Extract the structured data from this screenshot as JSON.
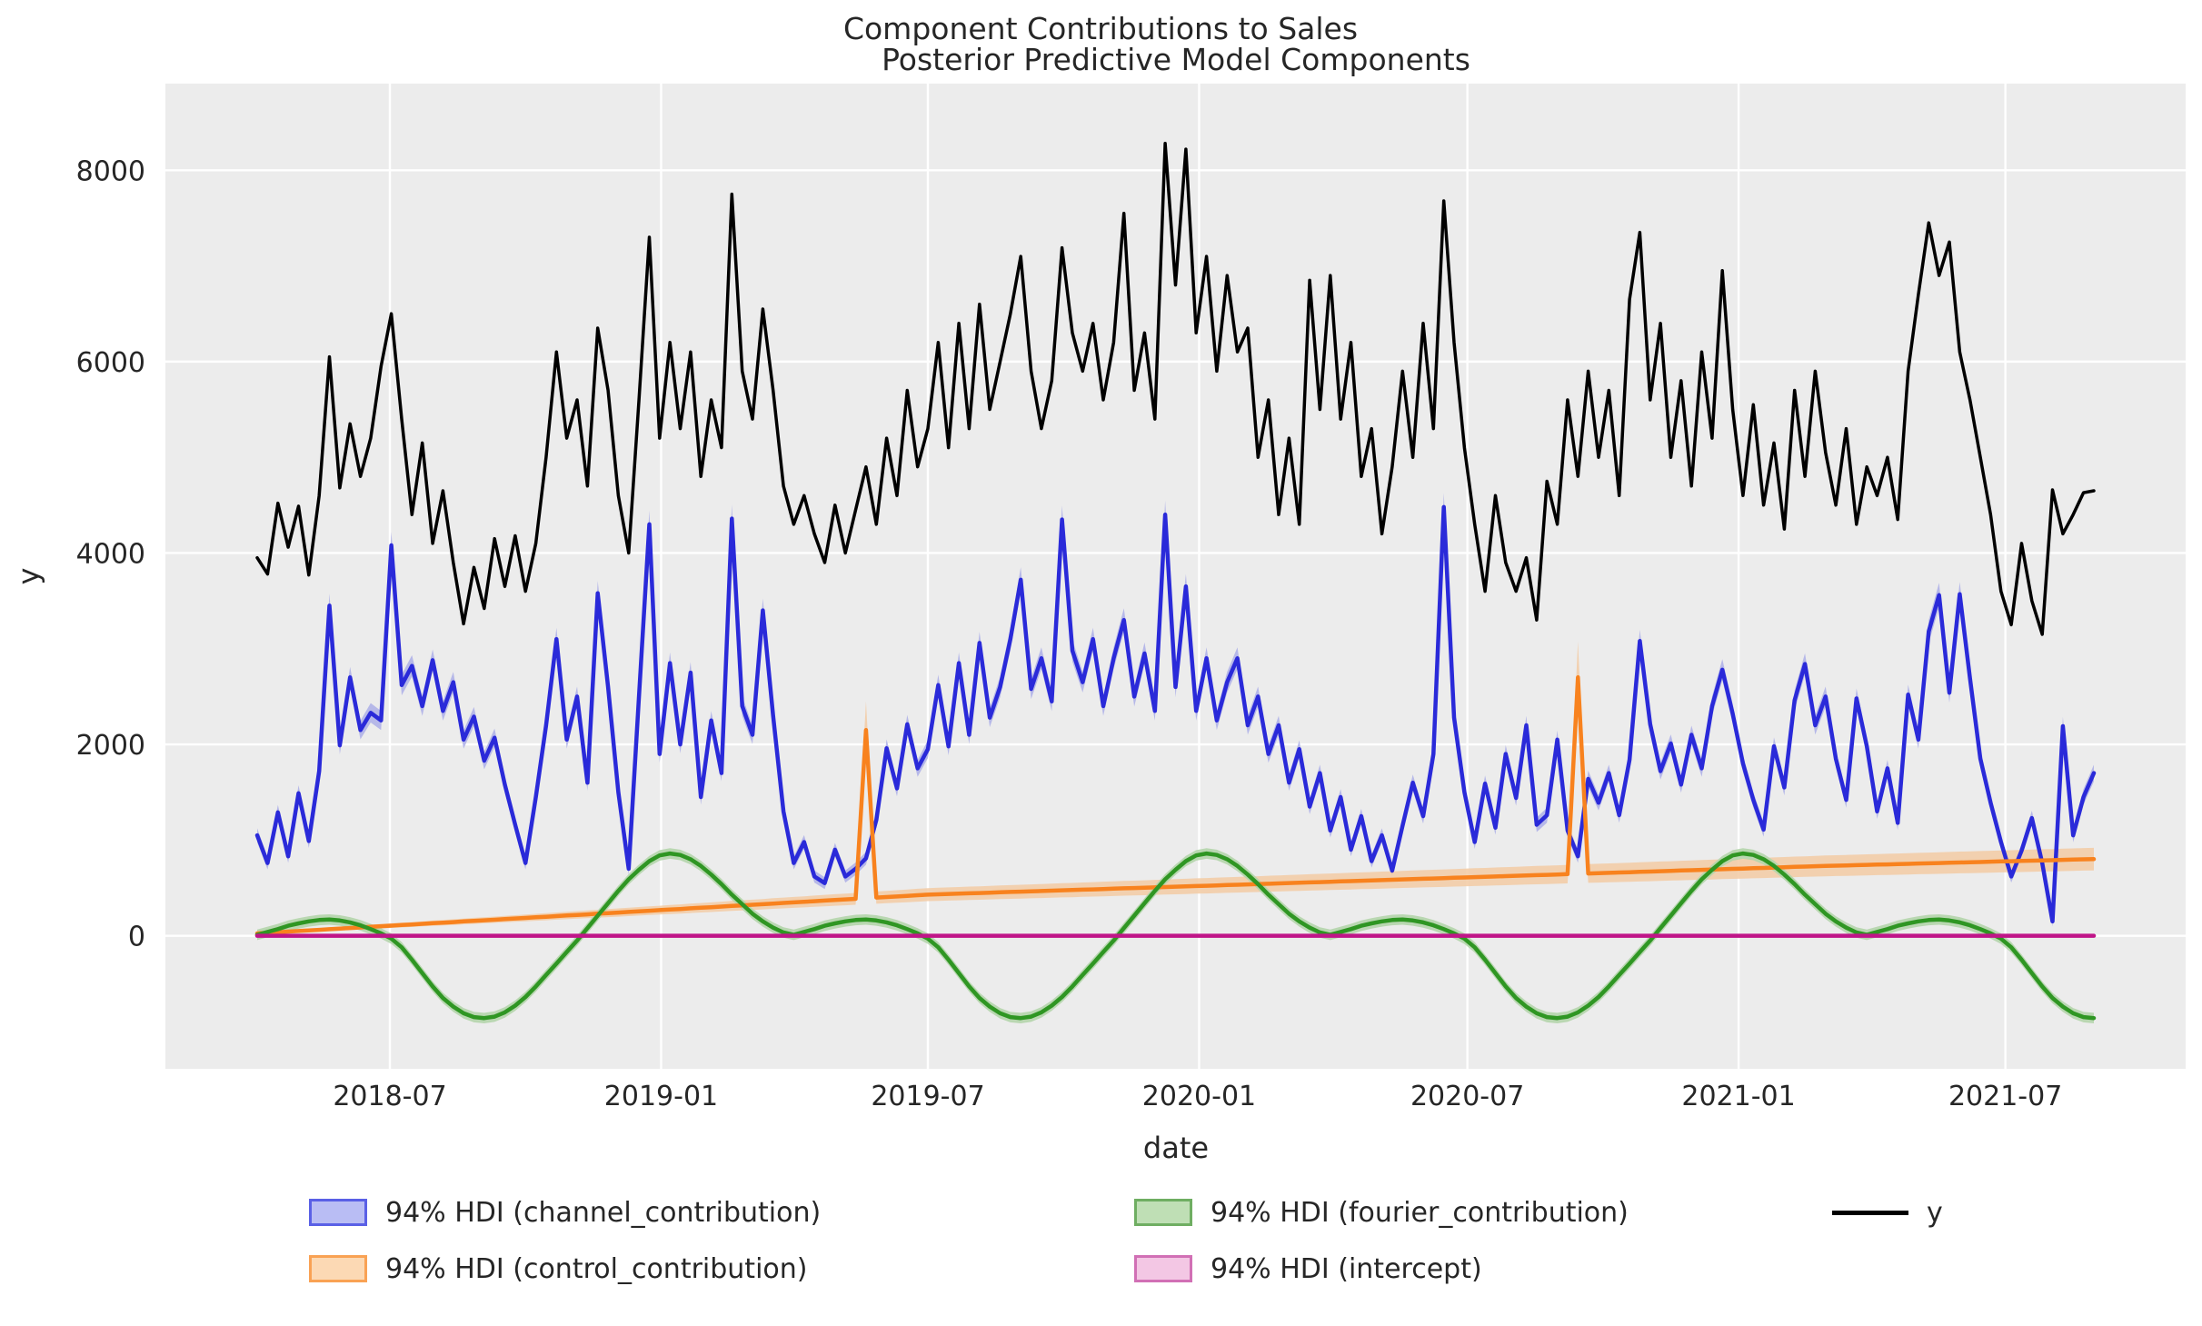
{
  "figure": {
    "suptitle": "Component Contributions to Sales",
    "title": "Posterior Predictive Model Components",
    "xlabel": "date",
    "ylabel": "y",
    "background": "#ffffff",
    "plot_background": "#ececec",
    "gridline_color": "#ffffff",
    "text_color": "#262626"
  },
  "axes": {
    "xlim_weeks": [
      -8.9,
      186.9
    ],
    "ylim": [
      -1390,
      8905
    ],
    "x_ticks": [
      {
        "label": "2018-07",
        "week": 12.857
      },
      {
        "label": "2019-01",
        "week": 39.143
      },
      {
        "label": "2019-07",
        "week": 65.0
      },
      {
        "label": "2020-01",
        "week": 91.286
      },
      {
        "label": "2020-07",
        "week": 117.286
      },
      {
        "label": "2021-01",
        "week": 143.571
      },
      {
        "label": "2021-07",
        "week": 169.429
      }
    ],
    "y_ticks": [
      {
        "label": "0",
        "value": 0
      },
      {
        "label": "2000",
        "value": 2000
      },
      {
        "label": "4000",
        "value": 4000
      },
      {
        "label": "6000",
        "value": 6000
      },
      {
        "label": "8000",
        "value": 8000
      }
    ]
  },
  "legend": {
    "items": [
      {
        "label": "94% HDI (channel_contribution)",
        "type": "patch",
        "fill": "#b9bdf4",
        "edge": "#5a60e6"
      },
      {
        "label": "94% HDI (control_contribution)",
        "type": "patch",
        "fill": "#fcd9b4",
        "edge": "#f9a254"
      },
      {
        "label": "94% HDI (fourier_contribution)",
        "type": "patch",
        "fill": "#bfdfb5",
        "edge": "#6fae62"
      },
      {
        "label": "94% HDI (intercept)",
        "type": "patch",
        "fill": "#f3c7e4",
        "edge": "#d170b5"
      },
      {
        "label": "y",
        "type": "line",
        "color": "#000000"
      }
    ]
  },
  "chart_data": {
    "type": "line",
    "title": "Component Contributions to Sales — Posterior Predictive Model Components",
    "xlabel": "date",
    "ylabel": "y",
    "x_unit": "week",
    "start_date": "2018-04-02",
    "end_date": "2021-08-30",
    "freq": "weekly (Mondays)",
    "n_points": 179,
    "grid": true,
    "legend_position": "bottom",
    "series": [
      {
        "name": "channel_contribution",
        "color": "#2a2ad9",
        "line_width": 4.5,
        "hdi_band": {
          "base": 50,
          "rel": 0.022,
          "color": "#b0b2e8",
          "label": "94% HDI"
        },
        "values": [
          1050,
          760,
          1290,
          830,
          1490,
          990,
          1720,
          3450,
          1990,
          2700,
          2150,
          2330,
          2250,
          4080,
          2620,
          2820,
          2400,
          2880,
          2350,
          2650,
          2050,
          2290,
          1830,
          2070,
          1580,
          1160,
          760,
          1450,
          2200,
          3100,
          2050,
          2500,
          1600,
          3580,
          2600,
          1500,
          700,
          2500,
          4300,
          1900,
          2850,
          2000,
          2750,
          1450,
          2250,
          1700,
          4360,
          2400,
          2100,
          3400,
          2300,
          1300,
          760,
          980,
          620,
          550,
          900,
          620,
          700,
          810,
          1210,
          1960,
          1540,
          2210,
          1750,
          1950,
          2620,
          1980,
          2850,
          2100,
          3060,
          2280,
          2600,
          3100,
          3720,
          2580,
          2900,
          2450,
          4350,
          2980,
          2650,
          3100,
          2400,
          2900,
          3300,
          2500,
          2950,
          2350,
          4400,
          2600,
          3650,
          2350,
          2900,
          2250,
          2650,
          2900,
          2200,
          2500,
          1900,
          2200,
          1600,
          1950,
          1350,
          1700,
          1100,
          1450,
          900,
          1250,
          780,
          1050,
          680,
          1150,
          1600,
          1250,
          1900,
          4480,
          2280,
          1500,
          980,
          1590,
          1130,
          1900,
          1440,
          2200,
          1160,
          1260,
          2050,
          1100,
          830,
          1640,
          1390,
          1700,
          1260,
          1840,
          3080,
          2210,
          1720,
          2010,
          1580,
          2100,
          1750,
          2400,
          2780,
          2320,
          1800,
          1420,
          1110,
          1980,
          1550,
          2460,
          2840,
          2200,
          2500,
          1850,
          1420,
          2480,
          1980,
          1300,
          1750,
          1180,
          2520,
          2050,
          3180,
          3560,
          2540,
          3570,
          2690,
          1850,
          1390,
          980,
          620,
          890,
          1230,
          760,
          150,
          2190,
          1050,
          1450,
          1700
        ]
      },
      {
        "name": "control_contribution",
        "color": "#f8821e",
        "line_width": 4.5,
        "hdi_band": {
          "base": 10,
          "rel": 0.135,
          "color": "#f3cda9",
          "label": "94% HDI"
        },
        "values": [
          25,
          31,
          37,
          44,
          50,
          56,
          62,
          69,
          75,
          81,
          87,
          94,
          100,
          106,
          112,
          118,
          125,
          131,
          137,
          143,
          150,
          156,
          162,
          168,
          175,
          181,
          187,
          193,
          199,
          206,
          212,
          218,
          224,
          231,
          237,
          243,
          249,
          256,
          262,
          268,
          274,
          280,
          287,
          293,
          299,
          305,
          312,
          318,
          324,
          330,
          337,
          343,
          349,
          355,
          361,
          368,
          374,
          380,
          386,
          2150,
          399,
          405,
          411,
          417,
          424,
          430,
          433,
          437,
          440,
          444,
          447,
          451,
          454,
          458,
          461,
          464,
          468,
          471,
          475,
          478,
          482,
          485,
          489,
          492,
          496,
          499,
          502,
          506,
          509,
          513,
          516,
          520,
          523,
          527,
          530,
          533,
          537,
          540,
          544,
          547,
          551,
          554,
          558,
          561,
          565,
          568,
          571,
          575,
          578,
          582,
          585,
          589,
          592,
          596,
          599,
          602,
          606,
          609,
          613,
          616,
          620,
          623,
          627,
          630,
          634,
          637,
          640,
          644,
          2700,
          651,
          654,
          658,
          661,
          664,
          668,
          671,
          675,
          678,
          682,
          685,
          689,
          692,
          696,
          699,
          702,
          706,
          709,
          713,
          716,
          720,
          723,
          727,
          730,
          733,
          735,
          738,
          741,
          744,
          746,
          749,
          752,
          755,
          757,
          760,
          763,
          766,
          768,
          771,
          774,
          777,
          779,
          782,
          785,
          788,
          790,
          793,
          796,
          799,
          801
        ]
      },
      {
        "name": "fourier_contribution",
        "color": "#2f9623",
        "line_width": 4.5,
        "hdi_band": {
          "base": 55,
          "rel": 0,
          "color": "#b4d5ab",
          "label": "94% HDI"
        },
        "values": [
          10,
          40,
          70,
          105,
          130,
          150,
          165,
          170,
          160,
          140,
          110,
          70,
          25,
          -30,
          -120,
          -250,
          -390,
          -530,
          -650,
          -740,
          -810,
          -850,
          -860,
          -845,
          -800,
          -730,
          -640,
          -530,
          -410,
          -290,
          -170,
          -50,
          80,
          210,
          340,
          470,
          590,
          690,
          780,
          840,
          860,
          845,
          800,
          730,
          640,
          540,
          430,
          330,
          230,
          150,
          85,
          35,
          10,
          40,
          70,
          105,
          130,
          150,
          165,
          170,
          160,
          140,
          110,
          70,
          25,
          -30,
          -120,
          -250,
          -390,
          -530,
          -650,
          -740,
          -810,
          -850,
          -860,
          -845,
          -800,
          -730,
          -640,
          -530,
          -410,
          -290,
          -170,
          -50,
          80,
          210,
          340,
          470,
          590,
          690,
          780,
          840,
          860,
          845,
          800,
          730,
          640,
          540,
          430,
          330,
          230,
          150,
          85,
          35,
          10,
          40,
          70,
          105,
          130,
          150,
          165,
          170,
          160,
          140,
          110,
          70,
          25,
          -30,
          -120,
          -250,
          -390,
          -530,
          -650,
          -740,
          -810,
          -850,
          -860,
          -845,
          -800,
          -730,
          -640,
          -530,
          -410,
          -290,
          -170,
          -50,
          80,
          210,
          340,
          470,
          590,
          690,
          780,
          840,
          860,
          845,
          800,
          730,
          640,
          540,
          430,
          330,
          230,
          150,
          85,
          35,
          10,
          40,
          70,
          105,
          130,
          150,
          165,
          170,
          160,
          140,
          110,
          70,
          25,
          -30,
          -120,
          -250,
          -390,
          -530,
          -650,
          -740,
          -810,
          -850,
          -860
        ]
      },
      {
        "name": "intercept",
        "color": "#c01588",
        "line_width": 4.5,
        "hdi_band": {
          "base": 20,
          "rel": 0,
          "color": "#dcb0d2",
          "label": "94% HDI"
        },
        "constant": 0,
        "n": 179
      },
      {
        "name": "y",
        "color": "#000000",
        "line_width": 3.5,
        "values": [
          3950,
          3780,
          4520,
          4060,
          4490,
          3770,
          4600,
          6050,
          4680,
          5350,
          4800,
          5200,
          5950,
          6500,
          5400,
          4400,
          5150,
          4100,
          4650,
          3900,
          3260,
          3850,
          3420,
          4150,
          3650,
          4180,
          3600,
          4100,
          5000,
          6100,
          5200,
          5600,
          4700,
          6350,
          5700,
          4600,
          4000,
          5600,
          7300,
          5200,
          6200,
          5300,
          6100,
          4800,
          5600,
          5100,
          7750,
          5900,
          5400,
          6550,
          5700,
          4700,
          4300,
          4600,
          4200,
          3900,
          4500,
          4000,
          4450,
          4900,
          4300,
          5200,
          4600,
          5700,
          4900,
          5300,
          6200,
          5100,
          6400,
          5300,
          6600,
          5500,
          6000,
          6500,
          7100,
          5900,
          5300,
          5800,
          7190,
          6300,
          5900,
          6400,
          5600,
          6200,
          7550,
          5700,
          6300,
          5400,
          8280,
          6800,
          8220,
          6300,
          7100,
          5900,
          6900,
          6100,
          6350,
          5000,
          5600,
          4400,
          5200,
          4300,
          6850,
          5500,
          6900,
          5400,
          6200,
          4800,
          5300,
          4200,
          4900,
          5900,
          5000,
          6400,
          5300,
          7680,
          6200,
          5100,
          4300,
          3600,
          4600,
          3900,
          3600,
          3950,
          3300,
          4750,
          4300,
          5600,
          4800,
          5900,
          5000,
          5700,
          4600,
          6650,
          7350,
          5600,
          6400,
          5000,
          5800,
          4700,
          6100,
          5200,
          6950,
          5500,
          4600,
          5550,
          4500,
          5150,
          4250,
          5700,
          4800,
          5900,
          5050,
          4500,
          5300,
          4300,
          4900,
          4600,
          5000,
          4350,
          5900,
          6700,
          7450,
          6900,
          7250,
          6100,
          5600,
          5000,
          4400,
          3600,
          3250,
          4100,
          3500,
          3150,
          4660,
          4200,
          4400,
          4630,
          4650
        ]
      }
    ]
  }
}
